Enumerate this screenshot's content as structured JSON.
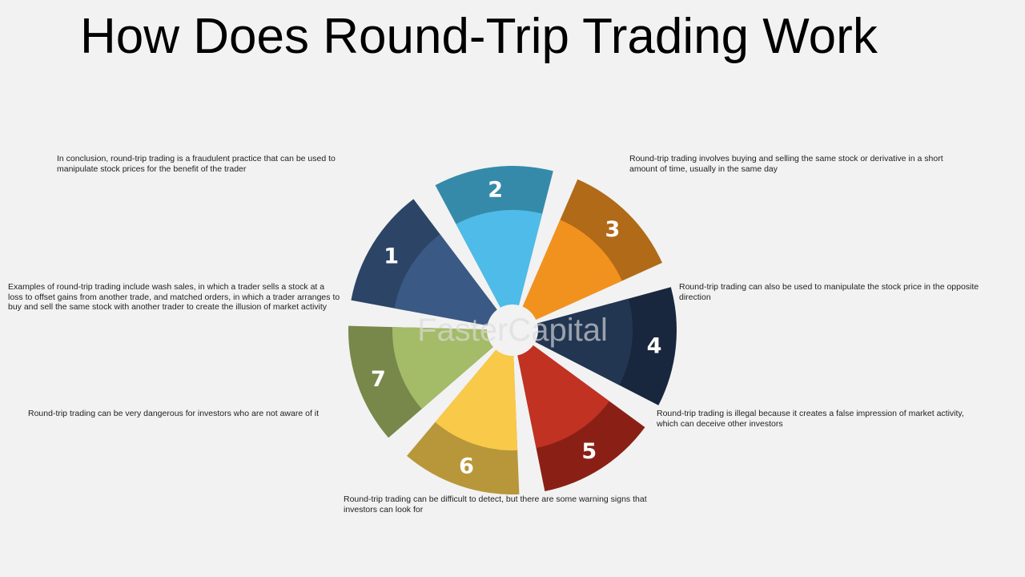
{
  "title": "How Does Round-Trip Trading Work",
  "watermark": "FasterCapital",
  "steps": [
    {
      "number": "1",
      "text": "Round-trip trading involves buying and selling the same stock or derivative in a short amount of time, usually in the same day",
      "outer_color": "#2c4466",
      "inner_color": "#3a5a85"
    },
    {
      "number": "2",
      "text": "Round-trip trading can also be used to manipulate the stock price in the opposite direction",
      "outer_color": "#358aaa",
      "inner_color": "#4fbbe8"
    },
    {
      "number": "3",
      "text": "Round-trip trading is illegal because it creates a false impression of market activity, which can deceive other investors",
      "outer_color": "#b06a18",
      "inner_color": "#f2921e"
    },
    {
      "number": "4",
      "text": "Round-trip trading can be difficult to detect, but there are some warning signs that investors can look for",
      "outer_color": "#18273d",
      "inner_color": "#223652"
    },
    {
      "number": "5",
      "text": "Round-trip trading can be very dangerous for investors who are not aware of it",
      "outer_color": "#8a2015",
      "inner_color": "#c13222"
    },
    {
      "number": "6",
      "text": "Examples of round-trip trading include wash sales, in which a trader sells a stock at a loss to offset gains from another trade, and matched orders, in which a trader arranges to buy and sell the same stock with another trader to create the illusion of market activity",
      "outer_color": "#b8973a",
      "inner_color": "#f9c94a"
    },
    {
      "number": "7",
      "text": "In conclusion, round-trip trading is a fraudulent practice that can be used to manipulate stock prices for the benefit of the trader",
      "outer_color": "#77884a",
      "inner_color": "#a4bb68"
    }
  ]
}
